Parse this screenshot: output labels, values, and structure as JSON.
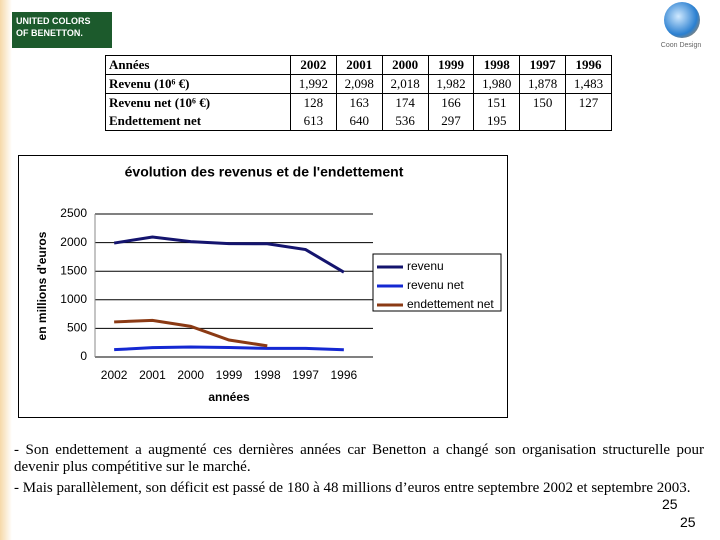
{
  "logo": {
    "lines": [
      "UNITED COLORS",
      "OF BENETTON."
    ],
    "corner_brand": "Coon Design"
  },
  "table": {
    "header": [
      "Années",
      "2002",
      "2001",
      "2000",
      "1999",
      "1998",
      "1997",
      "1996"
    ],
    "rows": [
      [
        "Revenu (10⁶ €)",
        "1,992",
        "2,098",
        "2,018",
        "1,982",
        "1,980",
        "1,878",
        "1,483"
      ],
      [
        "Revenu net (10⁶ €)",
        "128",
        "163",
        "174",
        "166",
        "151",
        "150",
        "127"
      ],
      [
        "Endettement net",
        "613",
        "640",
        "536",
        "297",
        "195",
        null,
        null
      ]
    ]
  },
  "chart_data": {
    "type": "line",
    "title": "évolution des revenus et de l'endettement",
    "y_label": "en millions d'euros",
    "x_label": "années",
    "categories": [
      "2002",
      "2001",
      "2000",
      "1999",
      "1998",
      "1997",
      "1996"
    ],
    "series": [
      {
        "name": "revenu",
        "color": "#14146e",
        "values": [
          1992,
          2098,
          2018,
          1982,
          1980,
          1878,
          1483
        ]
      },
      {
        "name": "revenu net",
        "color": "#1428d2",
        "values": [
          128,
          163,
          174,
          166,
          151,
          150,
          127
        ]
      },
      {
        "name": "endettement net",
        "color": "#8b3a14",
        "values": [
          613,
          640,
          536,
          297,
          195,
          null,
          null
        ]
      }
    ],
    "ylim": [
      0,
      2500
    ],
    "yticks": [
      0,
      500,
      1000,
      1500,
      2000,
      2500
    ],
    "grid": true,
    "legend": "right"
  },
  "paragraphs": [
    "- Son endettement a augmenté ces dernières années car Benetton a changé son organisation structurelle pour devenir plus compétitive sur le marché.",
    "- Mais parallèlement, son déficit est passé de 180 à 48 millions d’euros entre septembre 2002 et septembre 2003."
  ],
  "page_numbers": [
    "25",
    "25"
  ]
}
